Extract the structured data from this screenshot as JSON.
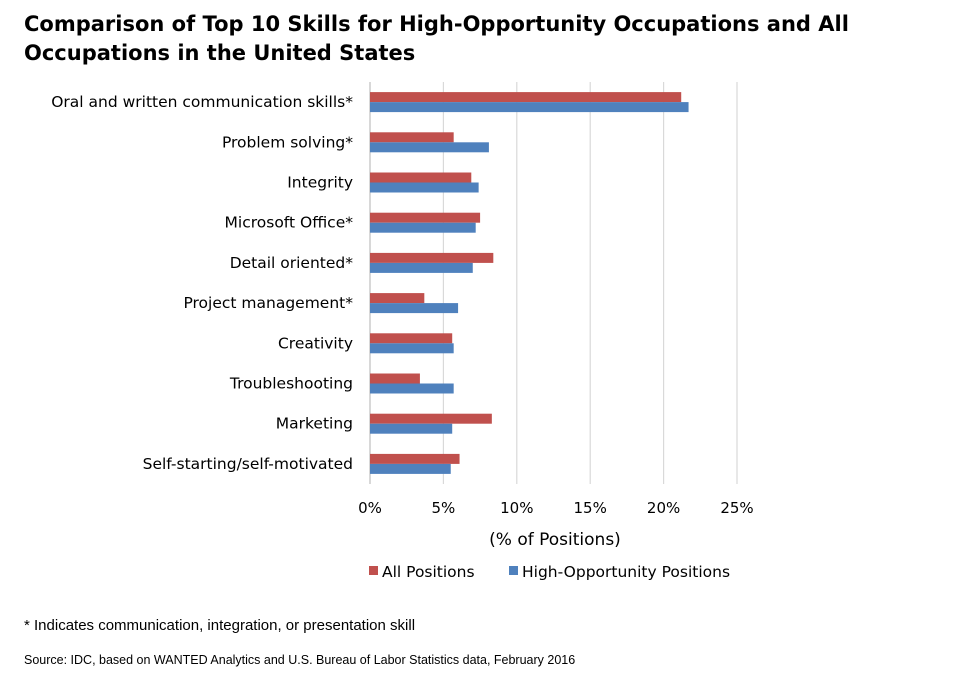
{
  "title": "Comparison of Top 10 Skills for High-Opportunity Occupations and All Occupations in the United States",
  "note": "* Indicates communication, integration, or presentation skill",
  "source": "Source: IDC, based on WANTED Analytics and U.S. Bureau of Labor Statistics data, February 2016",
  "chart_data": {
    "type": "bar",
    "orientation": "horizontal",
    "categories": [
      "Oral and written communication skills*",
      "Problem solving*",
      "Integrity",
      "Microsoft Office*",
      "Detail oriented*",
      "Project management*",
      "Creativity",
      "Troubleshooting",
      "Marketing",
      "Self-starting/self-motivated"
    ],
    "series": [
      {
        "name": "All Positions",
        "color": "#c0504d",
        "values": [
          21.2,
          5.7,
          6.9,
          7.5,
          8.4,
          3.7,
          5.6,
          3.4,
          8.3,
          6.1
        ]
      },
      {
        "name": "High-Opportunity Positions",
        "color": "#4f81bd",
        "values": [
          21.7,
          8.1,
          7.4,
          7.2,
          7.0,
          6.0,
          5.7,
          5.7,
          5.6,
          5.5
        ]
      }
    ],
    "xlabel": "(% of Positions)",
    "ylabel": "",
    "xlim": [
      0,
      25
    ],
    "xticks": [
      "0%",
      "5%",
      "10%",
      "15%",
      "20%",
      "25%"
    ],
    "grid": true,
    "legend": "bottom"
  }
}
